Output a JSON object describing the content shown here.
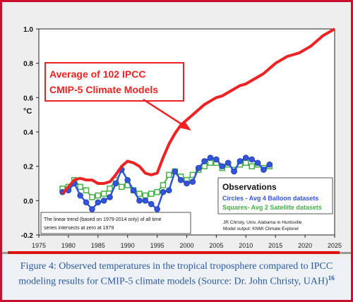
{
  "chart_data": {
    "type": "line",
    "y_unit": "°C",
    "xlim": [
      1975,
      2025
    ],
    "ylim": [
      -0.2,
      1.0
    ],
    "x_ticks": [
      "1975",
      "1980",
      "1985",
      "1990",
      "1995",
      "2000",
      "2005",
      "2010",
      "2015",
      "2020",
      "2025"
    ],
    "y_ticks": [
      "1.0",
      "0.8",
      "0.6",
      "0.4",
      "0.2",
      "0.0",
      "-0.2"
    ],
    "grid": false,
    "series": [
      {
        "name": "Average of 102 IPCC CMIP-5 Climate Models",
        "color": "#ee2222",
        "x": [
          1979,
          1980,
          1981,
          1982,
          1983,
          1984,
          1985,
          1986,
          1987,
          1988,
          1989,
          1990,
          1991,
          1992,
          1993,
          1994,
          1995,
          1996,
          1997,
          1998,
          1999,
          2000,
          2001,
          2002,
          2003,
          2004,
          2005,
          2006,
          2007,
          2008,
          2009,
          2010,
          2011,
          2012,
          2013,
          2014,
          2015,
          2016,
          2017,
          2018,
          2019,
          2020,
          2021,
          2022,
          2023,
          2024,
          2025
        ],
        "values": [
          0.04,
          0.08,
          0.12,
          0.13,
          0.12,
          0.12,
          0.1,
          0.1,
          0.11,
          0.15,
          0.2,
          0.23,
          0.22,
          0.2,
          0.16,
          0.15,
          0.16,
          0.25,
          0.33,
          0.39,
          0.44,
          0.47,
          0.5,
          0.53,
          0.56,
          0.58,
          0.6,
          0.61,
          0.63,
          0.65,
          0.67,
          0.68,
          0.7,
          0.72,
          0.74,
          0.77,
          0.8,
          0.82,
          0.84,
          0.85,
          0.86,
          0.88,
          0.9,
          0.93,
          0.96,
          0.98,
          1.0
        ]
      },
      {
        "name": "Circles - Avg 4 Balloon datasets",
        "color": "#3355dd",
        "x": [
          1979,
          1980,
          1981,
          1982,
          1983,
          1984,
          1985,
          1986,
          1987,
          1988,
          1989,
          1990,
          1991,
          1992,
          1993,
          1994,
          1995,
          1996,
          1997,
          1998,
          1999,
          2000,
          2001,
          2002,
          2003,
          2004,
          2005,
          2006,
          2007,
          2008,
          2009,
          2010,
          2011,
          2012,
          2013,
          2014
        ],
        "values": [
          0.05,
          0.06,
          0.1,
          0.03,
          -0.01,
          -0.05,
          -0.01,
          0.0,
          0.02,
          0.1,
          0.18,
          0.12,
          0.06,
          0.0,
          0.0,
          -0.02,
          -0.05,
          0.05,
          0.06,
          0.17,
          0.12,
          0.1,
          0.11,
          0.19,
          0.23,
          0.25,
          0.24,
          0.2,
          0.22,
          0.17,
          0.23,
          0.25,
          0.24,
          0.22,
          0.18,
          0.21
        ]
      },
      {
        "name": "Squares- Avg 2 Satellite datasets",
        "color": "#44b044",
        "x": [
          1979,
          1980,
          1981,
          1982,
          1983,
          1984,
          1985,
          1986,
          1987,
          1988,
          1989,
          1990,
          1991,
          1992,
          1993,
          1994,
          1995,
          1996,
          1997,
          1998,
          1999,
          2000,
          2001,
          2002,
          2003,
          2004,
          2005,
          2006,
          2007,
          2008,
          2009,
          2010,
          2011,
          2012,
          2013,
          2014
        ],
        "values": [
          0.07,
          0.08,
          0.12,
          0.08,
          0.06,
          0.02,
          0.03,
          0.04,
          0.07,
          0.12,
          0.08,
          0.09,
          0.06,
          0.04,
          0.03,
          0.04,
          0.05,
          0.09,
          0.15,
          0.17,
          0.14,
          0.12,
          0.15,
          0.18,
          0.2,
          0.22,
          0.22,
          0.19,
          0.21,
          0.18,
          0.21,
          0.22,
          0.2,
          0.21,
          0.19,
          0.2
        ]
      }
    ]
  },
  "annotations": {
    "models_label_line1": "Average of 102 IPCC",
    "models_label_line2": "CMIP-5 Climate Models",
    "observations_title": "Observations",
    "balloon_label": "Circles - Avg 4 Balloon datasets",
    "satellite_label": "Squares- Avg 2 Satellite datasets",
    "trend_note_line1": "The linear trend (based on 1979-2014 only) of all time",
    "trend_note_line2": "series intersects at zero at 1979",
    "credit_line1": "JR Christy, Univ. Alabama in Huntsville",
    "credit_line2": "Model output: KNMI Climate Explorer"
  },
  "caption": {
    "text": "Figure 4: Observed temperatures in the tropical troposphere compared to IPCC modeling results for CMIP-5 climate models (Source: Dr. John Christy, UAH)",
    "footnote": "16"
  },
  "colors": {
    "frame": "#c8102e",
    "model_line": "#ee2222",
    "balloon": "#3355dd",
    "satellite": "#44b044",
    "caption": "#2a5aa0"
  }
}
